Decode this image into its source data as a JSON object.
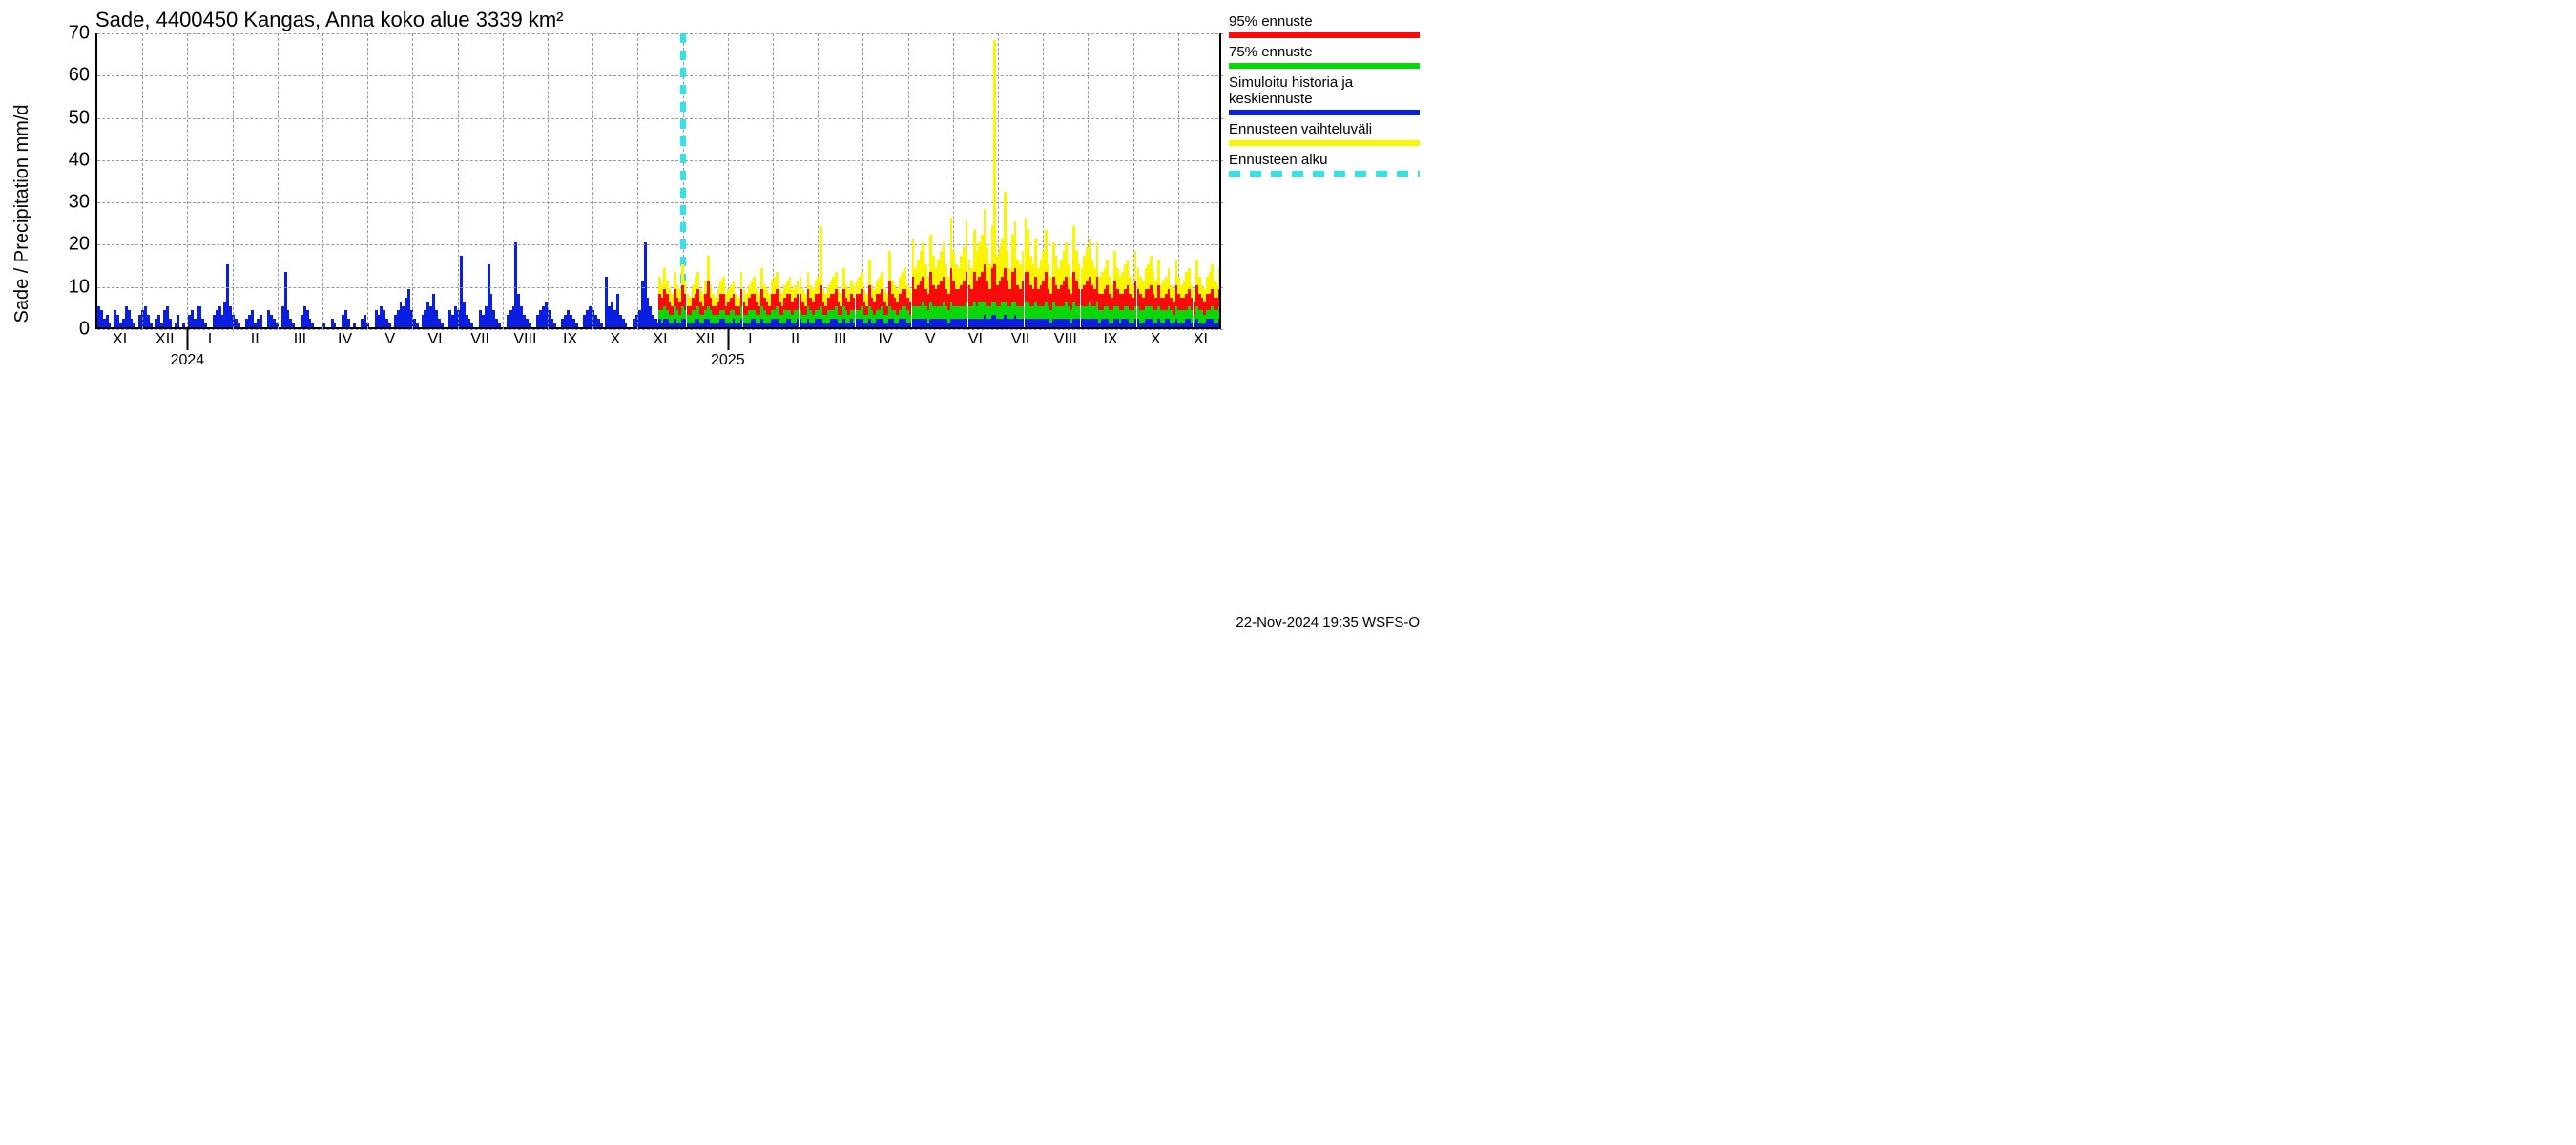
{
  "title": "Sade, 4400450 Kangas, Anna koko alue 3339 km²",
  "ylabel": "Sade / Precipitation   mm/d",
  "footer": "22-Nov-2024 19:35 WSFS-O",
  "chart": {
    "type": "bar",
    "background_color": "#ffffff",
    "grid_color": "#999999",
    "axis_color": "#000000",
    "title_fontsize": 22,
    "label_fontsize": 20,
    "tick_fontsize": 16,
    "ylim": [
      0,
      70
    ],
    "ytick_step": 10,
    "yticks": [
      0,
      10,
      20,
      30,
      40,
      50,
      60,
      70
    ],
    "x_months": [
      "XI",
      "XII",
      "I",
      "II",
      "III",
      "IV",
      "V",
      "VI",
      "VII",
      "VIII",
      "IX",
      "X",
      "XI",
      "XII",
      "I",
      "II",
      "III",
      "IV",
      "V",
      "VI",
      "VII",
      "VIII",
      "IX",
      "X",
      "XI"
    ],
    "year_labels": [
      {
        "label": "2024",
        "after_month_index": 2
      },
      {
        "label": "2025",
        "after_month_index": 14
      }
    ],
    "forecast_start_month_index": 13,
    "forecast_line_color": "#2fe5e8",
    "colors": {
      "history": "#0a1ee0",
      "p95": "#fa0a0a",
      "p75": "#08d808",
      "mean": "#0a1ee0",
      "range": "#fbf500"
    },
    "history_values": [
      5,
      4,
      2,
      3,
      1,
      0,
      4,
      3,
      1,
      2,
      5,
      4,
      2,
      1,
      0,
      3,
      4,
      5,
      3,
      1,
      0,
      2,
      3,
      1,
      4,
      5,
      2,
      0,
      1,
      3,
      0,
      1,
      0,
      3,
      4,
      2,
      5,
      5,
      2,
      1,
      0,
      0,
      3,
      4,
      5,
      3,
      6,
      15,
      5,
      3,
      2,
      1,
      0,
      0,
      2,
      3,
      4,
      1,
      2,
      3,
      0,
      0,
      4,
      3,
      2,
      1,
      0,
      5,
      13,
      4,
      2,
      1,
      0,
      0,
      3,
      5,
      4,
      2,
      1,
      0,
      0,
      0,
      1,
      0,
      0,
      2,
      1,
      0,
      0,
      3,
      4,
      2,
      0,
      1,
      0,
      0,
      2,
      3,
      1,
      0,
      0,
      4,
      3,
      5,
      4,
      2,
      1,
      0,
      3,
      4,
      6,
      5,
      7,
      9,
      4,
      2,
      1,
      0,
      3,
      4,
      6,
      5,
      8,
      4,
      2,
      1,
      0,
      0,
      4,
      3,
      5,
      4,
      17,
      6,
      3,
      2,
      1,
      0,
      0,
      4,
      3,
      5,
      15,
      8,
      4,
      2,
      1,
      0,
      0,
      3,
      4,
      5,
      20,
      8,
      5,
      3,
      2,
      1,
      0,
      0,
      3,
      4,
      5,
      6,
      4,
      2,
      1,
      0,
      0,
      2,
      3,
      4,
      3,
      2,
      1,
      0,
      0,
      3,
      4,
      5,
      4,
      3,
      2,
      1,
      0,
      12,
      5,
      6,
      4,
      8,
      3,
      2,
      1,
      0,
      0,
      2,
      3,
      4,
      11,
      20,
      7,
      5,
      3,
      2,
      1
    ],
    "forecast_values": {
      "range": [
        12,
        10,
        14,
        11,
        9,
        8,
        13,
        10,
        9,
        15,
        11,
        8,
        7,
        10,
        12,
        13,
        9,
        8,
        11,
        17,
        10,
        8,
        7,
        9,
        11,
        12,
        8,
        9,
        10,
        11,
        8,
        7,
        13,
        9,
        8,
        10,
        11,
        12,
        9,
        8,
        14,
        10,
        9,
        8,
        11,
        12,
        13,
        9,
        8,
        10,
        11,
        12,
        9,
        10,
        11,
        12,
        9,
        8,
        13,
        10,
        9,
        11,
        12,
        24,
        9,
        8,
        10,
        11,
        12,
        13,
        9,
        8,
        14,
        10,
        9,
        11,
        10,
        11,
        12,
        13,
        9,
        8,
        16,
        10,
        9,
        11,
        12,
        13,
        9,
        8,
        18,
        11,
        10,
        9,
        12,
        13,
        14,
        10,
        9,
        21,
        14,
        16,
        18,
        20,
        15,
        12,
        22,
        17,
        14,
        16,
        18,
        20,
        15,
        12,
        26,
        18,
        15,
        14,
        17,
        19,
        25,
        16,
        14,
        23,
        18,
        20,
        22,
        28,
        19,
        15,
        24,
        68,
        17,
        19,
        21,
        32,
        18,
        14,
        22,
        25,
        16,
        15,
        18,
        26,
        23,
        17,
        15,
        21,
        14,
        16,
        18,
        23,
        15,
        12,
        20,
        17,
        14,
        16,
        18,
        20,
        15,
        12,
        24,
        18,
        15,
        14,
        17,
        19,
        21,
        16,
        14,
        20,
        12,
        13,
        14,
        16,
        12,
        10,
        18,
        14,
        12,
        13,
        15,
        16,
        12,
        10,
        18,
        14,
        12,
        11,
        14,
        15,
        17,
        13,
        11,
        16,
        10,
        11,
        12,
        14,
        10,
        9,
        16,
        12,
        10,
        11,
        13,
        14,
        10,
        9,
        16,
        12,
        10,
        9,
        12,
        13,
        15,
        11,
        10,
        14
      ],
      "p95": [
        8,
        7,
        9,
        8,
        6,
        5,
        9,
        7,
        6,
        10,
        8,
        5,
        5,
        7,
        8,
        9,
        6,
        5,
        8,
        11,
        7,
        5,
        5,
        6,
        8,
        8,
        5,
        6,
        7,
        8,
        5,
        5,
        9,
        6,
        5,
        7,
        8,
        8,
        6,
        5,
        9,
        7,
        6,
        5,
        8,
        8,
        9,
        6,
        5,
        7,
        8,
        8,
        6,
        7,
        8,
        8,
        6,
        5,
        9,
        7,
        6,
        8,
        8,
        10,
        6,
        5,
        7,
        8,
        8,
        9,
        6,
        5,
        9,
        7,
        6,
        8,
        7,
        8,
        8,
        9,
        6,
        5,
        10,
        7,
        6,
        8,
        8,
        9,
        6,
        5,
        11,
        8,
        7,
        6,
        8,
        9,
        9,
        7,
        6,
        12,
        9,
        10,
        11,
        12,
        9,
        8,
        13,
        10,
        9,
        10,
        11,
        12,
        9,
        8,
        14,
        11,
        9,
        9,
        10,
        11,
        13,
        10,
        9,
        13,
        11,
        12,
        13,
        15,
        11,
        9,
        14,
        15,
        10,
        11,
        12,
        14,
        11,
        9,
        13,
        14,
        10,
        9,
        11,
        13,
        13,
        10,
        9,
        12,
        9,
        10,
        11,
        13,
        9,
        8,
        12,
        10,
        9,
        10,
        11,
        12,
        9,
        8,
        13,
        11,
        9,
        9,
        10,
        11,
        12,
        10,
        9,
        12,
        8,
        8,
        9,
        10,
        8,
        7,
        11,
        9,
        8,
        8,
        9,
        10,
        8,
        7,
        11,
        9,
        8,
        7,
        9,
        9,
        10,
        8,
        7,
        10,
        7,
        7,
        8,
        9,
        7,
        6,
        10,
        8,
        7,
        7,
        8,
        9,
        7,
        6,
        10,
        8,
        7,
        6,
        8,
        8,
        9,
        7,
        7,
        9
      ],
      "p75": [
        4,
        4,
        5,
        4,
        3,
        3,
        5,
        4,
        3,
        5,
        4,
        3,
        3,
        4,
        4,
        5,
        3,
        3,
        4,
        5,
        4,
        3,
        3,
        3,
        4,
        4,
        3,
        3,
        4,
        4,
        3,
        3,
        5,
        3,
        3,
        4,
        4,
        4,
        3,
        3,
        5,
        4,
        3,
        3,
        4,
        4,
        5,
        3,
        3,
        4,
        4,
        4,
        3,
        4,
        4,
        4,
        3,
        3,
        5,
        4,
        3,
        4,
        4,
        5,
        3,
        3,
        4,
        4,
        4,
        5,
        3,
        3,
        5,
        4,
        3,
        4,
        4,
        4,
        4,
        5,
        3,
        3,
        5,
        4,
        3,
        4,
        4,
        5,
        3,
        3,
        5,
        4,
        4,
        3,
        4,
        5,
        5,
        4,
        3,
        5,
        5,
        5,
        5,
        6,
        5,
        4,
        6,
        5,
        5,
        5,
        5,
        6,
        5,
        4,
        6,
        5,
        5,
        5,
        5,
        5,
        6,
        5,
        5,
        6,
        5,
        6,
        6,
        6,
        5,
        5,
        6,
        6,
        5,
        5,
        6,
        6,
        5,
        5,
        6,
        6,
        5,
        5,
        5,
        6,
        6,
        5,
        5,
        6,
        5,
        5,
        5,
        6,
        5,
        4,
        6,
        5,
        5,
        5,
        5,
        6,
        5,
        4,
        6,
        5,
        5,
        5,
        5,
        5,
        6,
        5,
        5,
        6,
        4,
        4,
        5,
        5,
        4,
        4,
        5,
        5,
        4,
        4,
        5,
        5,
        4,
        4,
        5,
        5,
        4,
        4,
        5,
        5,
        5,
        4,
        4,
        5,
        4,
        4,
        4,
        5,
        4,
        3,
        5,
        4,
        4,
        4,
        4,
        5,
        4,
        3,
        5,
        4,
        4,
        3,
        4,
        4,
        5,
        4,
        4,
        5
      ],
      "mean": [
        2,
        1,
        2,
        2,
        1,
        1,
        2,
        1,
        1,
        2,
        2,
        1,
        1,
        1,
        2,
        2,
        1,
        1,
        2,
        2,
        1,
        1,
        1,
        1,
        2,
        2,
        1,
        1,
        1,
        2,
        1,
        1,
        2,
        1,
        1,
        1,
        2,
        2,
        1,
        1,
        2,
        1,
        1,
        1,
        2,
        2,
        2,
        1,
        1,
        1,
        2,
        2,
        1,
        1,
        2,
        2,
        1,
        1,
        2,
        1,
        1,
        2,
        2,
        2,
        1,
        1,
        1,
        2,
        2,
        2,
        1,
        1,
        2,
        1,
        1,
        2,
        1,
        2,
        2,
        2,
        1,
        1,
        2,
        1,
        1,
        2,
        2,
        2,
        1,
        1,
        2,
        2,
        1,
        1,
        2,
        2,
        2,
        1,
        1,
        2,
        2,
        2,
        2,
        2,
        2,
        1,
        2,
        2,
        2,
        2,
        2,
        2,
        2,
        1,
        2,
        2,
        2,
        2,
        2,
        2,
        2,
        2,
        2,
        2,
        2,
        2,
        2,
        3,
        2,
        2,
        3,
        3,
        2,
        2,
        2,
        3,
        2,
        2,
        2,
        3,
        2,
        2,
        2,
        2,
        2,
        2,
        2,
        2,
        2,
        2,
        2,
        2,
        2,
        1,
        2,
        2,
        2,
        2,
        2,
        2,
        2,
        1,
        2,
        2,
        2,
        2,
        2,
        2,
        2,
        2,
        2,
        2,
        1,
        2,
        2,
        2,
        1,
        1,
        2,
        2,
        1,
        2,
        2,
        2,
        1,
        1,
        2,
        2,
        1,
        1,
        2,
        2,
        2,
        1,
        1,
        2,
        1,
        1,
        2,
        2,
        1,
        1,
        2,
        1,
        1,
        1,
        2,
        2,
        1,
        1,
        2,
        1,
        1,
        1,
        2,
        2,
        2,
        1,
        1,
        2
      ]
    }
  },
  "legend": {
    "items": [
      {
        "label": "95% ennuste",
        "color": "#fa0a0a",
        "style": "solid"
      },
      {
        "label": "75% ennuste",
        "color": "#08d808",
        "style": "solid"
      },
      {
        "label": "Simuloitu historia ja keskiennuste",
        "color": "#0a1ee0",
        "style": "solid"
      },
      {
        "label": "Ennusteen vaihteluväli",
        "color": "#fbf500",
        "style": "solid"
      },
      {
        "label": "Ennusteen alku",
        "color": "#2fe5e8",
        "style": "dash"
      }
    ]
  }
}
